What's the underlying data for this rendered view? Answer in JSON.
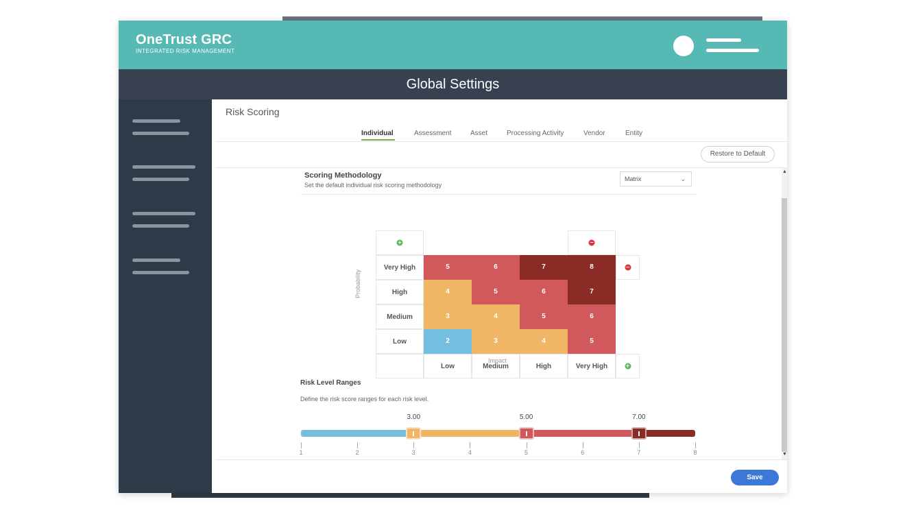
{
  "header": {
    "brand_title": "OneTrust GRC",
    "brand_subtitle": "INTEGRATED RISK MANAGEMENT"
  },
  "page_title": "Global Settings",
  "section_title": "Risk Scoring",
  "tabs": [
    {
      "label": "Individual",
      "active": true
    },
    {
      "label": "Assessment",
      "active": false
    },
    {
      "label": "Asset",
      "active": false
    },
    {
      "label": "Processing Activity",
      "active": false
    },
    {
      "label": "Vendor",
      "active": false
    },
    {
      "label": "Entity",
      "active": false
    }
  ],
  "restore_button": "Restore to Default",
  "methodology": {
    "title": "Scoring Methodology",
    "description": "Set the default individual risk scoring methodology",
    "selected": "Matrix"
  },
  "matrix": {
    "probability_label": "Probability",
    "impact_label": "Impact",
    "rows": [
      "Very High",
      "High",
      "Medium",
      "Low"
    ],
    "columns": [
      "Low",
      "Medium",
      "High",
      "Very High"
    ],
    "values": [
      [
        "5",
        "6",
        "7",
        "8"
      ],
      [
        "4",
        "5",
        "6",
        "7"
      ],
      [
        "3",
        "4",
        "5",
        "6"
      ],
      [
        "2",
        "3",
        "4",
        "5"
      ]
    ],
    "colors": {
      "2": "#74bfe0",
      "3": "#f0b666",
      "4": "#f0b666",
      "5": "#d1595b",
      "6": "#d1595b",
      "7": "#8a2b26",
      "8": "#8a2b26"
    }
  },
  "risk_levels": {
    "title": "Risk Level Ranges",
    "description": "Define the risk score ranges for each risk level.",
    "thresholds": [
      {
        "label": "3.00",
        "value": 3
      },
      {
        "label": "5.00",
        "value": 5
      },
      {
        "label": "7.00",
        "value": 7
      }
    ],
    "min": 1,
    "max": 8,
    "ticks": [
      "1",
      "2",
      "3",
      "4",
      "5",
      "6",
      "7",
      "8"
    ],
    "segment_colors": [
      "#74bfe0",
      "#f0b666",
      "#d1595b",
      "#8a2b26"
    ]
  },
  "save_button": "Save"
}
